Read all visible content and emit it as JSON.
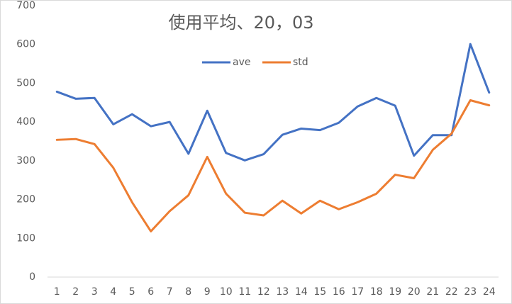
{
  "chart_data": {
    "type": "line",
    "title": "使用平均、20，03",
    "categories": [
      "1",
      "2",
      "3",
      "4",
      "5",
      "6",
      "7",
      "8",
      "9",
      "10",
      "11",
      "12",
      "13",
      "14",
      "15",
      "16",
      "17",
      "18",
      "19",
      "20",
      "21",
      "22",
      "23",
      "24"
    ],
    "series": [
      {
        "name": "ave",
        "color": "#4472c4",
        "values": [
          478,
          460,
          462,
          394,
          420,
          389,
          400,
          318,
          429,
          320,
          301,
          317,
          367,
          383,
          379,
          398,
          440,
          462,
          442,
          313,
          366,
          366,
          601,
          476
        ]
      },
      {
        "name": "std",
        "color": "#ed7d31",
        "values": [
          354,
          356,
          343,
          282,
          193,
          118,
          170,
          211,
          310,
          215,
          166,
          159,
          197,
          164,
          197,
          175,
          193,
          215,
          264,
          255,
          328,
          370,
          456,
          443
        ]
      }
    ],
    "ylim": [
      0,
      700
    ],
    "yticks": [
      0,
      100,
      200,
      300,
      400,
      500,
      600,
      700
    ],
    "grid": false
  }
}
